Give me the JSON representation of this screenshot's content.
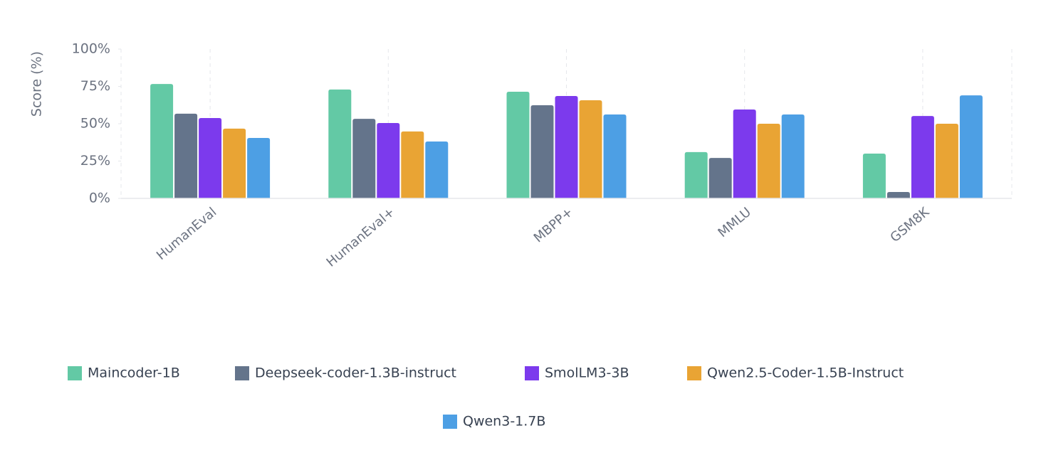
{
  "chart_data": {
    "type": "bar",
    "y_label": "Score (%)",
    "categories": [
      "HumanEval",
      "HumanEval+",
      "MBPP+",
      "MMLU",
      "GSM8K"
    ],
    "series": [
      {
        "name": "Maincoder-1B",
        "color": "#63c9a5",
        "values": [
          76.6,
          72.9,
          71.4,
          31.0,
          30.0
        ]
      },
      {
        "name": "Deepseek-coder-1.3B-instruct",
        "color": "#64748b",
        "values": [
          56.7,
          53.3,
          62.4,
          27.1,
          4.3
        ]
      },
      {
        "name": "SmolLM3-3B",
        "color": "#7c3aed",
        "values": [
          53.8,
          50.5,
          68.6,
          59.5,
          55.2
        ]
      },
      {
        "name": "Qwen2.5-Coder-1.5B-Instruct",
        "color": "#e9a434",
        "values": [
          46.7,
          44.8,
          65.7,
          50.0,
          50.0
        ]
      },
      {
        "name": "Qwen3-1.7B",
        "color": "#4d9fe4",
        "values": [
          40.5,
          38.1,
          56.2,
          56.2,
          69.0
        ]
      }
    ],
    "ylim": [
      0,
      100
    ],
    "yticks": [
      {
        "value": 0,
        "label": "0%"
      },
      {
        "value": 25,
        "label": "25%"
      },
      {
        "value": 50,
        "label": "50%"
      },
      {
        "value": 75,
        "label": "75%"
      },
      {
        "value": 100,
        "label": "100%"
      }
    ],
    "grid": true,
    "legend": "bottom"
  }
}
